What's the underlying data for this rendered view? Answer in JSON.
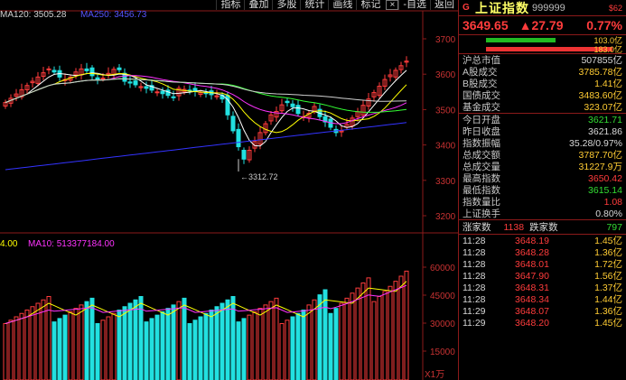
{
  "toolbar": {
    "items": [
      "指标",
      "叠加",
      "多股",
      "统计",
      "画线",
      "标记",
      "-自选",
      "返回"
    ],
    "close_label": "×"
  },
  "legends": {
    "ma120": "MA120: 3505.28",
    "ma250": "MA250: 3456.73",
    "vol_prefix": "4.00",
    "ma10": "MA10: 513377184.00"
  },
  "axis": {
    "price_ticks": [
      "3700",
      "3600",
      "3500",
      "3400",
      "3300",
      "3200"
    ],
    "volume_ticks": [
      "60000",
      "45000",
      "30000",
      "15000"
    ],
    "volume_unit": "X1万"
  },
  "annotation": {
    "low_label": "3312.72"
  },
  "colors": {
    "up": "#ff3c3c",
    "down": "#22e0e0",
    "ma5": "#ffffff",
    "ma10": "#ffff00",
    "ma20": "#ff33ff",
    "ma60": "#33ff33",
    "ma120": "#d0d0d0",
    "ma250": "#3333ff",
    "grid": "#8b1a1a",
    "label_yellow": "#ffcc33"
  },
  "panel": {
    "header": {
      "g": "G",
      "name": "上证指数",
      "code": "999999",
      "badge": "$62"
    },
    "price": {
      "last": "3649.65",
      "change": "▲27.79",
      "pct": "0.77%"
    },
    "bars": [
      {
        "value": "103.0亿",
        "fraction_green": 0.55,
        "fraction_red": 0.0
      },
      {
        "value": "183.0亿",
        "fraction_green": 0.0,
        "fraction_red": 1.0
      }
    ],
    "stats_a": [
      {
        "k": "沪总市值",
        "v": "507855亿",
        "c": "white"
      },
      {
        "k": " A股成交",
        "v": "3785.78亿",
        "c": "yellow"
      },
      {
        "k": " B股成交",
        "v": "1.41亿",
        "c": "yellow"
      },
      {
        "k": "国债成交",
        "v": "3483.60亿",
        "c": "yellow"
      },
      {
        "k": "基金成交",
        "v": "323.07亿",
        "c": "yellow"
      }
    ],
    "stats_b": [
      {
        "k": "今日开盘",
        "v": "3621.71",
        "c": "green"
      },
      {
        "k": "昨日收盘",
        "v": "3621.86",
        "c": "white"
      },
      {
        "k": "指数振幅",
        "v": "35.28/0.97%",
        "c": "white"
      },
      {
        "k": "总成交额",
        "v": "3787.70亿",
        "c": "yellow"
      },
      {
        "k": "总成交量",
        "v": "31227.9万",
        "c": "yellow"
      },
      {
        "k": "最高指数",
        "v": "3650.42",
        "c": "red"
      },
      {
        "k": "最低指数",
        "v": "3615.14",
        "c": "green"
      },
      {
        "k": "指数量比",
        "v": "1.08",
        "c": "red"
      },
      {
        "k": "上证换手",
        "v": "0.80%",
        "c": "white"
      }
    ],
    "advance": {
      "up_label": "涨家数",
      "up_value": "1138",
      "down_label": "跌家数",
      "down_value": "797"
    },
    "ticks": [
      {
        "t": "11:28",
        "p": "3648.19",
        "q": "1.45亿"
      },
      {
        "t": "11:28",
        "p": "3648.28",
        "q": "1.36亿"
      },
      {
        "t": "11:28",
        "p": "3648.01",
        "q": "1.72亿"
      },
      {
        "t": "11:28",
        "p": "3647.90",
        "q": "1.56亿"
      },
      {
        "t": "11:28",
        "p": "3648.31",
        "q": "1.37亿"
      },
      {
        "t": "11:28",
        "p": "3648.34",
        "q": "1.44亿"
      },
      {
        "t": "11:29",
        "p": "3648.07",
        "q": "1.36亿"
      },
      {
        "t": "11:29",
        "p": "3648.20",
        "q": "1.45亿"
      }
    ]
  }
}
